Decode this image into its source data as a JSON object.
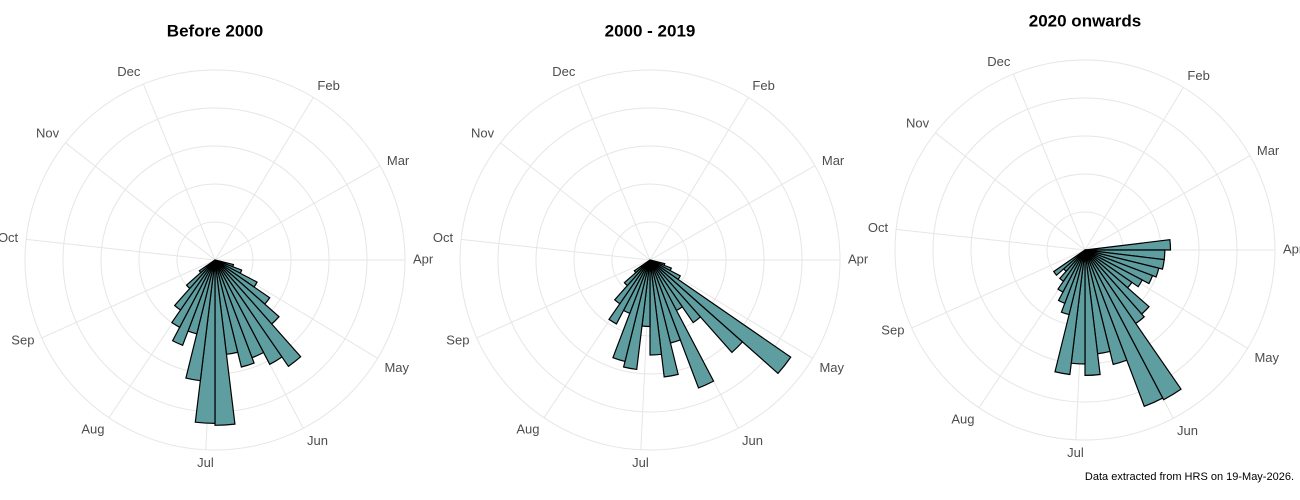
{
  "chart_data": [
    {
      "type": "polar_bar",
      "title": "Before 2000",
      "color": "#5f9ea0",
      "x": [
        15,
        16,
        17,
        18,
        19,
        20,
        21,
        22,
        23,
        24,
        25,
        26,
        27,
        28,
        29,
        30,
        31,
        32,
        33
      ],
      "values": [
        10,
        15,
        25,
        35,
        45,
        68,
        62,
        55,
        58,
        50,
        87,
        86,
        64,
        40,
        48,
        40,
        32,
        20,
        10
      ],
      "xlim": [
        0,
        52
      ],
      "ylim": [
        0,
        100
      ],
      "yticks": [
        20,
        40,
        60,
        80,
        100
      ],
      "xticks": [
        {
          "value": 4.5,
          "label": "Feb"
        },
        {
          "value": 8.7,
          "label": "Mar"
        },
        {
          "value": 13,
          "label": "Apr"
        },
        {
          "value": 17.5,
          "label": "May"
        },
        {
          "value": 22,
          "label": "Jun"
        },
        {
          "value": 26.4,
          "label": "Jul"
        },
        {
          "value": 30.9,
          "label": "Aug"
        },
        {
          "value": 35.5,
          "label": "Sep"
        },
        {
          "value": 39.9,
          "label": "Oct"
        },
        {
          "value": 44.5,
          "label": "Nov"
        },
        {
          "value": 48.8,
          "label": "Dec"
        }
      ]
    },
    {
      "type": "polar_bar",
      "title": "2000 - 2019",
      "color": "#5f9ea0",
      "x": [
        15,
        16,
        17,
        18,
        19,
        20,
        21,
        22,
        23,
        24,
        25,
        26,
        27,
        28,
        29,
        30,
        31,
        32,
        33
      ],
      "values": [
        8,
        12,
        18,
        90,
        65,
        40,
        30,
        72,
        45,
        62,
        50,
        35,
        58,
        55,
        30,
        38,
        28,
        18,
        10
      ],
      "xlim": [
        0,
        52
      ],
      "ylim": [
        0,
        100
      ],
      "yticks": [
        20,
        40,
        60,
        80,
        100
      ],
      "xticks": [
        {
          "value": 4.5,
          "label": "Feb"
        },
        {
          "value": 8.7,
          "label": "Mar"
        },
        {
          "value": 13,
          "label": "Apr"
        },
        {
          "value": 17.5,
          "label": "May"
        },
        {
          "value": 22,
          "label": "Jun"
        },
        {
          "value": 26.4,
          "label": "Jul"
        },
        {
          "value": 30.9,
          "label": "Aug"
        },
        {
          "value": 35.5,
          "label": "Sep"
        },
        {
          "value": 39.9,
          "label": "Oct"
        },
        {
          "value": 44.5,
          "label": "Nov"
        },
        {
          "value": 48.8,
          "label": "Dec"
        }
      ]
    },
    {
      "type": "polar_bar",
      "title": "2020 onwards",
      "color": "#5f9ea0",
      "x": [
        12,
        13,
        14,
        15,
        16,
        17,
        18,
        19,
        20,
        21,
        22,
        23,
        24,
        25,
        26,
        27,
        28,
        29,
        30,
        31,
        32,
        33
      ],
      "values": [
        45,
        42,
        42,
        40,
        38,
        34,
        30,
        45,
        47,
        89,
        88,
        62,
        55,
        66,
        60,
        66,
        35,
        30,
        25,
        20,
        15,
        20
      ],
      "xlim": [
        0,
        52
      ],
      "ylim": [
        0,
        100
      ],
      "yticks": [
        20,
        40,
        60,
        80,
        100
      ],
      "xticks": [
        {
          "value": 4.5,
          "label": "Feb"
        },
        {
          "value": 8.7,
          "label": "Mar"
        },
        {
          "value": 13,
          "label": "Apr"
        },
        {
          "value": 17.5,
          "label": "May"
        },
        {
          "value": 22,
          "label": "Jun"
        },
        {
          "value": 26.4,
          "label": "Jul"
        },
        {
          "value": 30.9,
          "label": "Aug"
        },
        {
          "value": 35.5,
          "label": "Sep"
        },
        {
          "value": 39.9,
          "label": "Oct"
        },
        {
          "value": 44.5,
          "label": "Nov"
        },
        {
          "value": 48.8,
          "label": "Dec"
        }
      ]
    }
  ],
  "footnote": "Data extracted from HRS on 19-May-2026."
}
